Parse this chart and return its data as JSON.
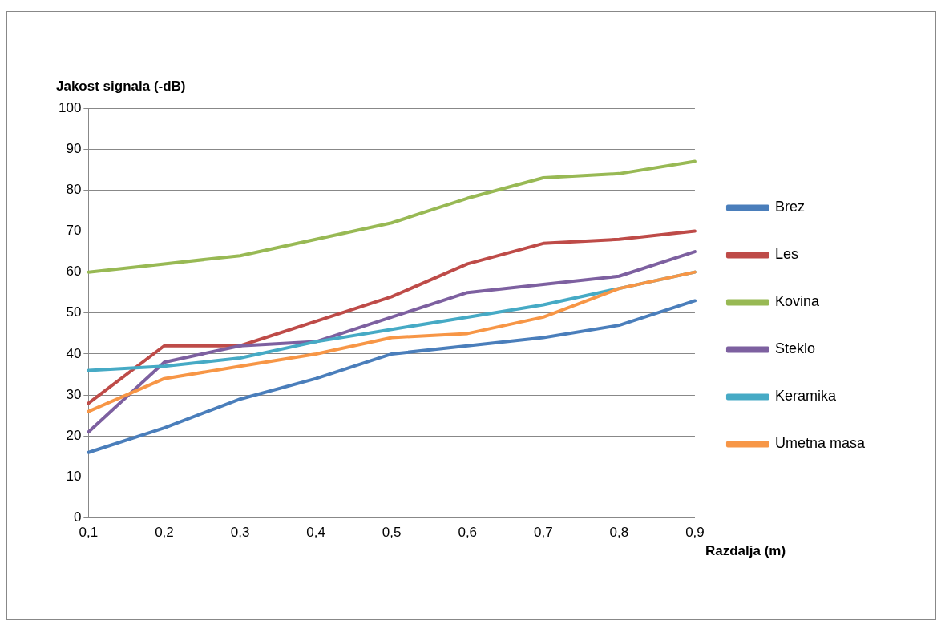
{
  "chart_data": {
    "type": "line",
    "xlabel": "Razdalja (m)",
    "ylabel": "Jakost signala (-dB)",
    "categories": [
      "0,1",
      "0,2",
      "0,3",
      "0,4",
      "0,5",
      "0,6",
      "0,7",
      "0,8",
      "0,9"
    ],
    "series": [
      {
        "name": "Brez",
        "color": "#4a7ebb",
        "values": [
          16,
          22,
          29,
          34,
          40,
          42,
          44,
          47,
          53
        ]
      },
      {
        "name": "Les",
        "color": "#be4b48",
        "values": [
          28,
          42,
          42,
          48,
          54,
          62,
          67,
          68,
          70
        ]
      },
      {
        "name": "Kovina",
        "color": "#98b954",
        "values": [
          60,
          62,
          64,
          68,
          72,
          78,
          83,
          84,
          87
        ]
      },
      {
        "name": "Steklo",
        "color": "#7d60a0",
        "values": [
          21,
          38,
          42,
          43,
          49,
          55,
          57,
          59,
          65
        ]
      },
      {
        "name": "Keramika",
        "color": "#46aac5",
        "values": [
          36,
          37,
          39,
          43,
          46,
          49,
          52,
          56,
          60
        ]
      },
      {
        "name": "Umetna masa",
        "color": "#f79646",
        "values": [
          26,
          34,
          37,
          40,
          44,
          45,
          49,
          56,
          60
        ]
      }
    ],
    "ylim": [
      0,
      100
    ],
    "yticks": [
      0,
      10,
      20,
      30,
      40,
      50,
      60,
      70,
      80,
      90,
      100
    ],
    "grid": "y",
    "legend": "right",
    "marker": "none",
    "line_style": "solid"
  }
}
